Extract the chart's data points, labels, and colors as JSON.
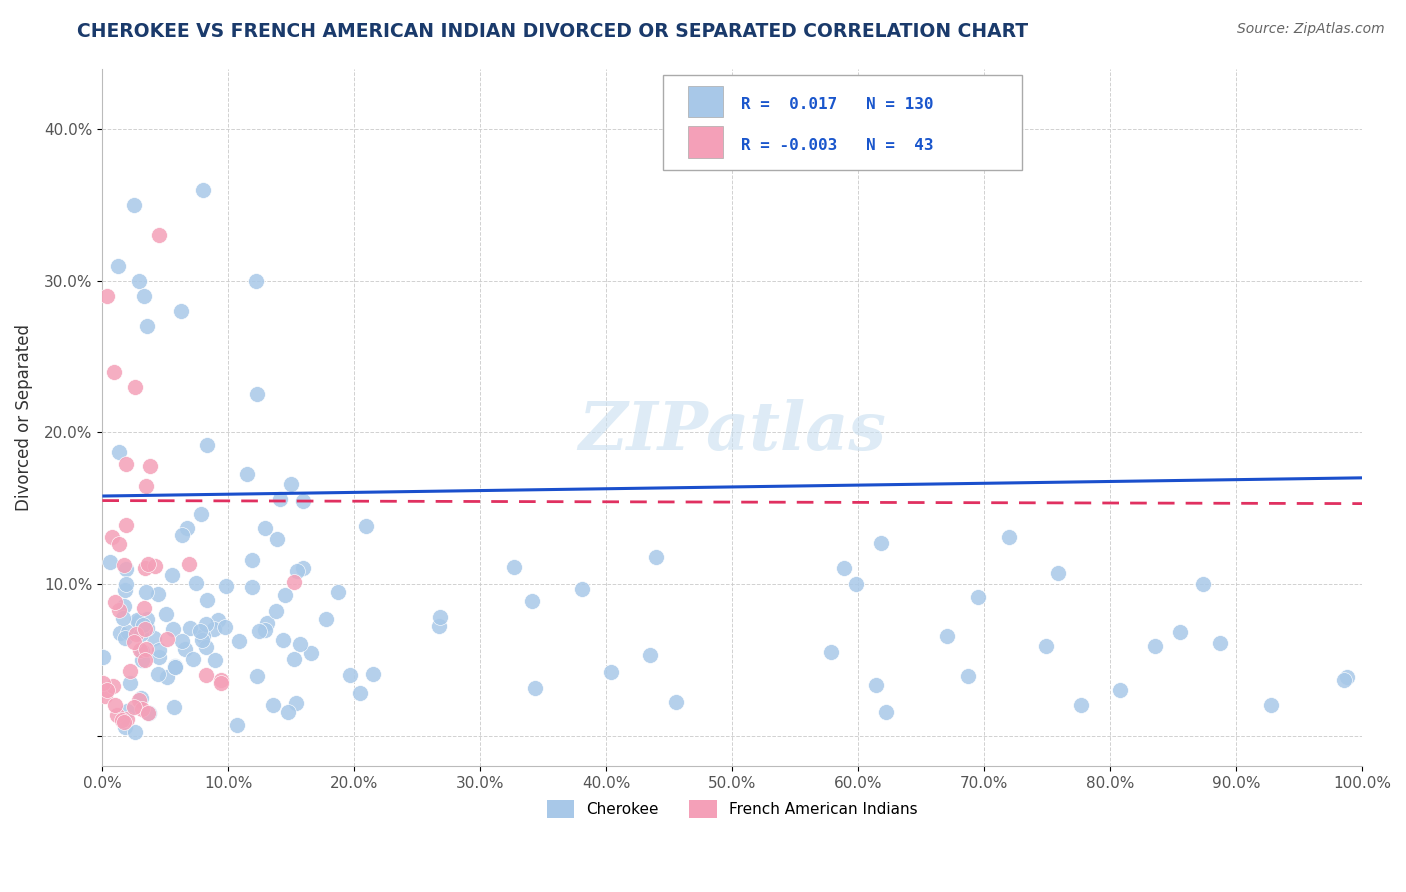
{
  "title": "CHEROKEE VS FRENCH AMERICAN INDIAN DIVORCED OR SEPARATED CORRELATION CHART",
  "source": "Source: ZipAtlas.com",
  "ylabel": "Divorced or Separated",
  "xlim": [
    0,
    1.0
  ],
  "ylim": [
    -0.02,
    0.44
  ],
  "x_ticks": [
    0.0,
    0.1,
    0.2,
    0.3,
    0.4,
    0.5,
    0.6,
    0.7,
    0.8,
    0.9,
    1.0
  ],
  "x_tick_labels": [
    "0.0%",
    "10.0%",
    "20.0%",
    "30.0%",
    "40.0%",
    "50.0%",
    "60.0%",
    "70.0%",
    "80.0%",
    "90.0%",
    "100.0%"
  ],
  "y_ticks": [
    0.0,
    0.1,
    0.2,
    0.3,
    0.4
  ],
  "y_tick_labels": [
    "",
    "10.0%",
    "20.0%",
    "30.0%",
    "40.0%"
  ],
  "blue_color": "#a8c8e8",
  "pink_color": "#f4a0b8",
  "line_blue": "#1a4fcc",
  "line_pink": "#e03060",
  "watermark": "ZIPatlas",
  "ck_intercept": 0.158,
  "ck_slope": 0.012,
  "fr_intercept": 0.155,
  "fr_slope": -0.002
}
